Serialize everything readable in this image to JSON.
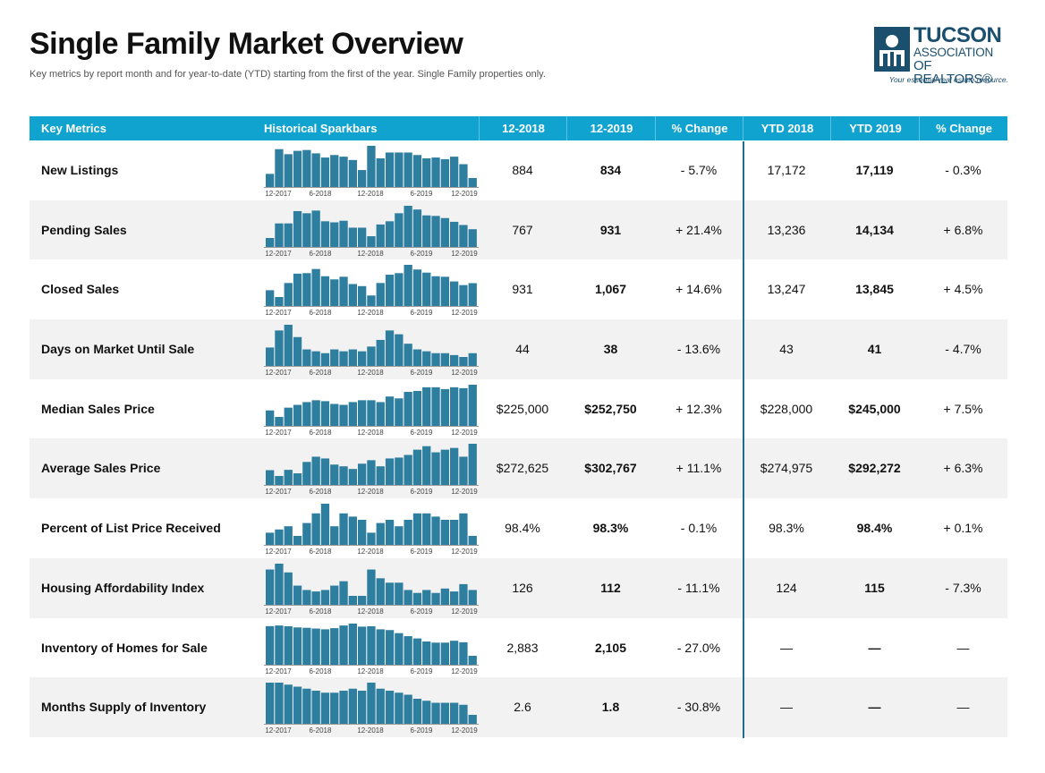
{
  "header": {
    "title": "Single Family Market Overview",
    "subtitle": "Key metrics by report month and for year-to-date (YTD) starting from the first of the year. Single Family properties only."
  },
  "logo": {
    "line1": "TUCSON",
    "line2": "ASSOCIATION",
    "line3": "OF REALTORS®",
    "tagline": "Your essential real estate resource."
  },
  "columns": {
    "key": "Key Metrics",
    "spark": "Historical Sparkbars",
    "m2018": "12-2018",
    "m2019": "12-2019",
    "change": "% Change",
    "ytd2018": "YTD 2018",
    "ytd2019": "YTD 2019",
    "ytd_change": "% Change"
  },
  "spark_axis_labels": [
    "12-2017",
    "6-2018",
    "12-2018",
    "6-2019",
    "12-2019"
  ],
  "colors": {
    "header_bg": "#11a3cf",
    "bar": "#2e7ea0",
    "divider": "#1b6f8c"
  },
  "rows": [
    {
      "label": "New Listings",
      "m2018": "884",
      "m2019": "834",
      "change": "- 5.7%",
      "ytd2018": "17,172",
      "ytd2019": "17,119",
      "ytd_change": "- 0.3%",
      "spark": [
        884,
        1180,
        1120,
        1160,
        1170,
        1130,
        1080,
        1110,
        1090,
        1050,
        930,
        1220,
        1070,
        1140,
        1140,
        1140,
        1110,
        1070,
        1080,
        1060,
        1090,
        1000,
        834
      ]
    },
    {
      "label": "Pending Sales",
      "m2018": "767",
      "m2019": "931",
      "change": "+ 21.4%",
      "ytd2018": "13,236",
      "ytd2019": "14,134",
      "ytd_change": "+ 6.8%",
      "spark": [
        767,
        1040,
        1040,
        1270,
        1230,
        1280,
        1080,
        1060,
        1090,
        960,
        960,
        800,
        1020,
        1080,
        1230,
        1370,
        1300,
        1190,
        1180,
        1140,
        1070,
        1010,
        931
      ]
    },
    {
      "label": "Closed Sales",
      "m2018": "931",
      "m2019": "1,067",
      "change": "+ 14.6%",
      "ytd2018": "13,247",
      "ytd2019": "13,845",
      "ytd_change": "+ 4.5%",
      "spark": [
        931,
        800,
        1070,
        1250,
        1260,
        1340,
        1200,
        1140,
        1190,
        1050,
        1010,
        830,
        1070,
        1230,
        1260,
        1420,
        1330,
        1270,
        1200,
        1190,
        1100,
        1030,
        1067
      ]
    },
    {
      "label": "Days on Market Until Sale",
      "m2018": "44",
      "m2019": "38",
      "change": "- 13.6%",
      "ytd2018": "43",
      "ytd2019": "41",
      "ytd_change": "- 4.7%",
      "spark": [
        44,
        62,
        68,
        55,
        42,
        40,
        38,
        42,
        40,
        42,
        40,
        45,
        52,
        62,
        58,
        48,
        42,
        40,
        38,
        38,
        36,
        34,
        38
      ]
    },
    {
      "label": "Median Sales Price",
      "m2018": "$225,000",
      "m2019": "$252,750",
      "change": "+ 12.3%",
      "ytd2018": "$228,000",
      "ytd2019": "$245,000",
      "ytd_change": "+ 7.5%",
      "spark": [
        225000,
        218000,
        228000,
        231000,
        234000,
        236000,
        235000,
        232000,
        231000,
        234000,
        236000,
        236000,
        234000,
        240000,
        238000,
        245000,
        246000,
        250000,
        250000,
        248000,
        250000,
        249000,
        252750
      ]
    },
    {
      "label": "Average Sales Price",
      "m2018": "$272,625",
      "m2019": "$302,767",
      "change": "+ 11.1%",
      "ytd2018": "$274,975",
      "ytd2019": "$292,272",
      "ytd_change": "+ 6.3%",
      "spark": [
        272625,
        266000,
        273000,
        269000,
        282000,
        288000,
        286000,
        279000,
        277000,
        274000,
        280000,
        284000,
        277000,
        286000,
        287000,
        290000,
        296000,
        300000,
        293000,
        296000,
        298000,
        288000,
        302767
      ]
    },
    {
      "label": "Percent of List Price Received",
      "m2018": "98.4%",
      "m2019": "98.3%",
      "change": "- 0.1%",
      "ytd2018": "98.3%",
      "ytd2019": "98.4%",
      "ytd_change": "+ 0.1%",
      "spark": [
        98.4,
        98.5,
        98.6,
        98.3,
        98.7,
        99.0,
        99.3,
        98.6,
        99.0,
        98.9,
        98.8,
        98.4,
        98.7,
        98.8,
        98.6,
        98.8,
        99.0,
        99.0,
        98.9,
        98.8,
        98.8,
        99.0,
        98.3
      ]
    },
    {
      "label": "Housing Affordability Index",
      "m2018": "126",
      "m2019": "112",
      "change": "- 11.1%",
      "ytd2018": "124",
      "ytd2019": "115",
      "ytd_change": "- 7.3%",
      "spark": [
        126,
        130,
        124,
        115,
        112,
        111,
        112,
        115,
        118,
        108,
        108,
        126,
        120,
        117,
        117,
        112,
        110,
        112,
        110,
        113,
        111,
        116,
        112
      ]
    },
    {
      "label": "Inventory of Homes for Sale",
      "m2018": "2,883",
      "m2019": "2,105",
      "change": "- 27.0%",
      "ytd2018": "—",
      "ytd2019": "—",
      "ytd_change": "—",
      "spark": [
        2883,
        2900,
        2880,
        2850,
        2840,
        2820,
        2800,
        2830,
        2900,
        2950,
        2870,
        2880,
        2800,
        2780,
        2700,
        2620,
        2560,
        2480,
        2450,
        2450,
        2500,
        2460,
        2105
      ]
    },
    {
      "label": "Months Supply of Inventory",
      "m2018": "2.6",
      "m2019": "1.8",
      "change": "- 30.8%",
      "ytd2018": "—",
      "ytd2019": "—",
      "ytd_change": "—",
      "spark": [
        2.6,
        2.6,
        2.55,
        2.5,
        2.45,
        2.4,
        2.35,
        2.35,
        2.4,
        2.45,
        2.4,
        2.6,
        2.45,
        2.4,
        2.35,
        2.3,
        2.2,
        2.15,
        2.1,
        2.1,
        2.1,
        2.05,
        1.8
      ]
    }
  ]
}
